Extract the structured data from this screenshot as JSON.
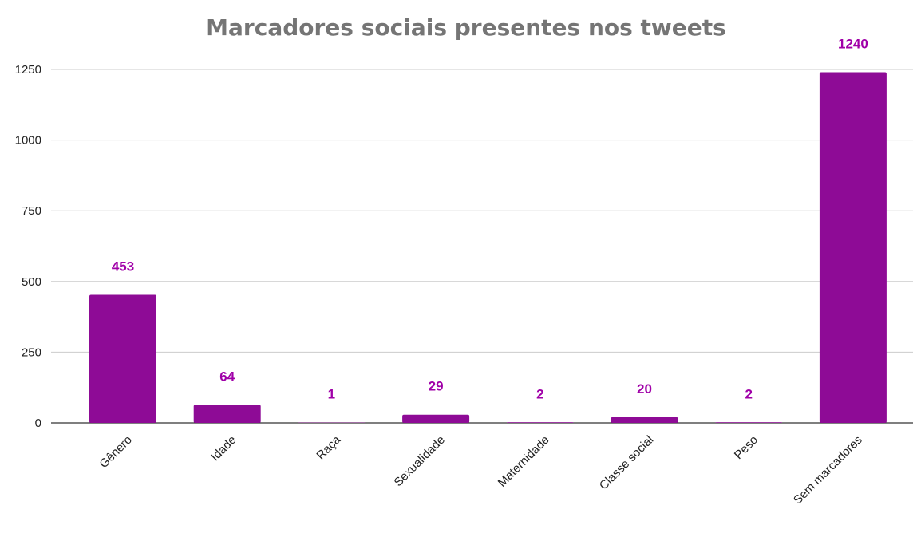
{
  "chart_data": {
    "type": "bar",
    "title": "Marcadores sociais presentes nos tweets",
    "xlabel": "",
    "ylabel": "",
    "categories": [
      "Gênero",
      "Idade",
      "Raça",
      "Sexualidade",
      "Maternidade",
      "Classe social",
      "Peso",
      "Sem marcadores"
    ],
    "values": [
      453,
      64,
      1,
      29,
      2,
      20,
      2,
      1240
    ],
    "data_labels": [
      "453",
      "64",
      "1",
      "29",
      "2",
      "20",
      "2",
      "1240"
    ],
    "ylim": [
      0,
      1250
    ],
    "yticks": [
      0,
      250,
      500,
      750,
      1000,
      1250
    ],
    "ytick_labels": [
      "0",
      "250",
      "500",
      "750",
      "1000",
      "1250"
    ],
    "grid": true,
    "legend": "none",
    "bar_color": "#8e0b96",
    "label_color": "#a000a8"
  }
}
